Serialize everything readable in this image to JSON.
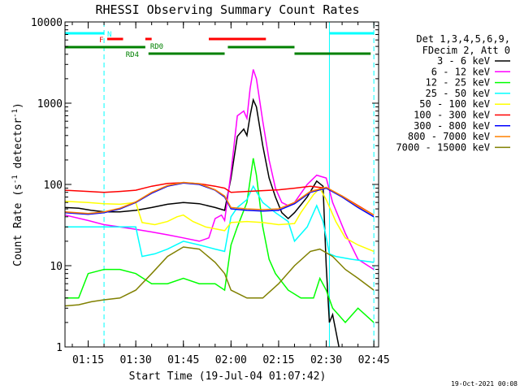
{
  "chart_data": {
    "type": "line",
    "title": "RHESSI Observing Summary Count Rates",
    "xlabel": "Start Time (19-Jul-04 01:07:42)",
    "ylabel": "Count Rate (s⁻¹ detector⁻¹)",
    "ylabel_parts": {
      "main": "Count Rate (s",
      "exp1": "-1",
      "mid": " detector",
      "exp2": "-1",
      "end": ")"
    },
    "y_scale": "log",
    "ylim": [
      1,
      10000
    ],
    "xlim": [
      "01:07:42",
      "02:46:30"
    ],
    "x_ticks": [
      "01:15",
      "01:30",
      "01:45",
      "02:00",
      "02:15",
      "02:30",
      "02:45"
    ],
    "y_ticks": [
      "1",
      "10",
      "100",
      "1000",
      "10000"
    ],
    "legend_header": [
      "Det 1,3,4,5,6,9,",
      "FDecim 2, Att 0"
    ],
    "legend_position": "right",
    "footer_date": "19-Oct-2021 00:08",
    "series": [
      {
        "name": "3 - 6 keV",
        "color": "#000000",
        "points": [
          [
            "01:07:42",
            52
          ],
          [
            "01:12",
            51
          ],
          [
            "01:16",
            48
          ],
          [
            "01:20",
            46
          ],
          [
            "01:25",
            46
          ],
          [
            "01:30",
            48
          ],
          [
            "01:35",
            52
          ],
          [
            "01:40",
            57
          ],
          [
            "01:45",
            60
          ],
          [
            "01:50",
            58
          ],
          [
            "01:55",
            52
          ],
          [
            "01:58",
            48
          ],
          [
            "02:00",
            120
          ],
          [
            "02:02",
            390
          ],
          [
            "02:04",
            480
          ],
          [
            "02:05",
            400
          ],
          [
            "02:06",
            700
          ],
          [
            "02:07",
            1100
          ],
          [
            "02:08",
            900
          ],
          [
            "02:10",
            300
          ],
          [
            "02:12",
            120
          ],
          [
            "02:14",
            70
          ],
          [
            "02:16",
            45
          ],
          [
            "02:18",
            38
          ],
          [
            "02:20",
            45
          ],
          [
            "02:24",
            70
          ],
          [
            "02:27",
            110
          ],
          [
            "02:29",
            95
          ],
          [
            "02:30",
            10
          ],
          [
            "02:31",
            2
          ],
          [
            "02:32",
            2.5
          ],
          [
            "02:34",
            1
          ]
        ]
      },
      {
        "name": "6 - 12 keV",
        "color": "#ff00ff",
        "points": [
          [
            "01:07:42",
            42
          ],
          [
            "01:15",
            36
          ],
          [
            "01:20",
            32
          ],
          [
            "01:25",
            30
          ],
          [
            "01:30",
            28
          ],
          [
            "01:35",
            26
          ],
          [
            "01:40",
            24
          ],
          [
            "01:45",
            22
          ],
          [
            "01:50",
            20
          ],
          [
            "01:53",
            22
          ],
          [
            "01:55",
            38
          ],
          [
            "01:57",
            42
          ],
          [
            "01:58",
            36
          ],
          [
            "02:00",
            140
          ],
          [
            "02:02",
            700
          ],
          [
            "02:04",
            800
          ],
          [
            "02:05",
            650
          ],
          [
            "02:06",
            1500
          ],
          [
            "02:07",
            2600
          ],
          [
            "02:08",
            2000
          ],
          [
            "02:10",
            600
          ],
          [
            "02:12",
            200
          ],
          [
            "02:14",
            90
          ],
          [
            "02:16",
            60
          ],
          [
            "02:18",
            55
          ],
          [
            "02:20",
            60
          ],
          [
            "02:24",
            100
          ],
          [
            "02:27",
            130
          ],
          [
            "02:30",
            120
          ],
          [
            "02:32",
            60
          ],
          [
            "02:36",
            25
          ],
          [
            "02:40",
            12
          ],
          [
            "02:45",
            9
          ]
        ]
      },
      {
        "name": "12 - 25 keV",
        "color": "#00ff00",
        "points": [
          [
            "01:07:42",
            4
          ],
          [
            "01:12",
            4
          ],
          [
            "01:15",
            8
          ],
          [
            "01:20",
            9
          ],
          [
            "01:25",
            9
          ],
          [
            "01:30",
            8
          ],
          [
            "01:35",
            6
          ],
          [
            "01:40",
            6
          ],
          [
            "01:45",
            7
          ],
          [
            "01:50",
            6
          ],
          [
            "01:55",
            6
          ],
          [
            "01:58",
            5
          ],
          [
            "02:00",
            18
          ],
          [
            "02:02",
            30
          ],
          [
            "02:05",
            60
          ],
          [
            "02:07",
            210
          ],
          [
            "02:08",
            130
          ],
          [
            "02:10",
            30
          ],
          [
            "02:12",
            12
          ],
          [
            "02:14",
            8
          ],
          [
            "02:18",
            5
          ],
          [
            "02:22",
            4
          ],
          [
            "02:26",
            4
          ],
          [
            "02:28",
            7
          ],
          [
            "02:30",
            5
          ],
          [
            "02:32",
            3
          ],
          [
            "02:36",
            2
          ],
          [
            "02:40",
            3
          ],
          [
            "02:45",
            2
          ]
        ]
      },
      {
        "name": "25 - 50 keV",
        "color": "#00ffff",
        "points": [
          [
            "01:07:42",
            30
          ],
          [
            "01:15",
            30
          ],
          [
            "01:20",
            30
          ],
          [
            "01:25",
            30
          ],
          [
            "01:30",
            30
          ],
          [
            "01:32",
            13
          ],
          [
            "01:36",
            14
          ],
          [
            "01:40",
            16
          ],
          [
            "01:45",
            20
          ],
          [
            "01:50",
            18
          ],
          [
            "01:55",
            16
          ],
          [
            "01:58",
            15
          ],
          [
            "02:00",
            40
          ],
          [
            "02:02",
            52
          ],
          [
            "02:05",
            65
          ],
          [
            "02:07",
            95
          ],
          [
            "02:10",
            60
          ],
          [
            "02:14",
            45
          ],
          [
            "02:18",
            35
          ],
          [
            "02:20",
            20
          ],
          [
            "02:24",
            30
          ],
          [
            "02:27",
            55
          ],
          [
            "02:29",
            35
          ],
          [
            "02:31",
            14
          ],
          [
            "02:33",
            13
          ],
          [
            "02:38",
            12
          ],
          [
            "02:45",
            11
          ]
        ]
      },
      {
        "name": "50 - 100 keV",
        "color": "#ffff00",
        "points": [
          [
            "01:07:42",
            62
          ],
          [
            "01:15",
            60
          ],
          [
            "01:20",
            58
          ],
          [
            "01:25",
            57
          ],
          [
            "01:30",
            60
          ],
          [
            "01:32",
            34
          ],
          [
            "01:36",
            32
          ],
          [
            "01:40",
            35
          ],
          [
            "01:43",
            40
          ],
          [
            "01:45",
            42
          ],
          [
            "01:48",
            35
          ],
          [
            "01:52",
            30
          ],
          [
            "01:58",
            27
          ],
          [
            "02:00",
            34
          ],
          [
            "02:05",
            35
          ],
          [
            "02:10",
            34
          ],
          [
            "02:15",
            32
          ],
          [
            "02:20",
            33
          ],
          [
            "02:22",
            45
          ],
          [
            "02:26",
            75
          ],
          [
            "02:28",
            90
          ],
          [
            "02:30",
            65
          ],
          [
            "02:33",
            35
          ],
          [
            "02:36",
            22
          ],
          [
            "02:40",
            18
          ],
          [
            "02:45",
            15
          ]
        ]
      },
      {
        "name": "100 - 300 keV",
        "color": "#ff0000",
        "points": [
          [
            "01:07:42",
            85
          ],
          [
            "01:15",
            82
          ],
          [
            "01:20",
            80
          ],
          [
            "01:25",
            82
          ],
          [
            "01:30",
            85
          ],
          [
            "01:35",
            95
          ],
          [
            "01:40",
            103
          ],
          [
            "01:45",
            105
          ],
          [
            "01:50",
            102
          ],
          [
            "01:55",
            95
          ],
          [
            "01:58",
            90
          ],
          [
            "02:00",
            80
          ],
          [
            "02:05",
            82
          ],
          [
            "02:10",
            84
          ],
          [
            "02:15",
            86
          ],
          [
            "02:20",
            90
          ],
          [
            "02:25",
            95
          ],
          [
            "02:30",
            90
          ],
          [
            "02:35",
            72
          ],
          [
            "02:40",
            55
          ],
          [
            "02:45",
            42
          ]
        ]
      },
      {
        "name": "300 - 800 keV",
        "color": "#0000ff",
        "points": [
          [
            "01:07:42",
            45
          ],
          [
            "01:15",
            43
          ],
          [
            "01:20",
            45
          ],
          [
            "01:25",
            50
          ],
          [
            "01:30",
            60
          ],
          [
            "01:35",
            78
          ],
          [
            "01:40",
            95
          ],
          [
            "01:45",
            104
          ],
          [
            "01:50",
            100
          ],
          [
            "01:55",
            85
          ],
          [
            "01:58",
            70
          ],
          [
            "02:00",
            50
          ],
          [
            "02:05",
            48
          ],
          [
            "02:10",
            47
          ],
          [
            "02:15",
            48
          ],
          [
            "02:20",
            58
          ],
          [
            "02:25",
            80
          ],
          [
            "02:30",
            90
          ],
          [
            "02:35",
            70
          ],
          [
            "02:40",
            52
          ],
          [
            "02:45",
            40
          ]
        ]
      },
      {
        "name": "800 - 7000 keV",
        "color": "#ff8000",
        "points": [
          [
            "01:07:42",
            46
          ],
          [
            "01:15",
            44
          ],
          [
            "01:20",
            46
          ],
          [
            "01:25",
            51
          ],
          [
            "01:30",
            61
          ],
          [
            "01:35",
            80
          ],
          [
            "01:40",
            97
          ],
          [
            "01:45",
            106
          ],
          [
            "01:50",
            102
          ],
          [
            "01:55",
            86
          ],
          [
            "01:58",
            72
          ],
          [
            "02:00",
            52
          ],
          [
            "02:05",
            50
          ],
          [
            "02:10",
            49
          ],
          [
            "02:15",
            50
          ],
          [
            "02:20",
            60
          ],
          [
            "02:25",
            82
          ],
          [
            "02:30",
            92
          ],
          [
            "02:35",
            72
          ],
          [
            "02:40",
            54
          ],
          [
            "02:45",
            42
          ]
        ]
      },
      {
        "name": "7000 - 15000 keV",
        "color": "#808000",
        "points": [
          [
            "01:07:42",
            3.2
          ],
          [
            "01:12",
            3.3
          ],
          [
            "01:16",
            3.6
          ],
          [
            "01:20",
            3.8
          ],
          [
            "01:25",
            4.0
          ],
          [
            "01:30",
            5
          ],
          [
            "01:35",
            8
          ],
          [
            "01:40",
            13
          ],
          [
            "01:45",
            17
          ],
          [
            "01:50",
            16
          ],
          [
            "01:55",
            11
          ],
          [
            "01:58",
            8
          ],
          [
            "02:00",
            5
          ],
          [
            "02:05",
            4
          ],
          [
            "02:10",
            4
          ],
          [
            "02:15",
            6
          ],
          [
            "02:20",
            10
          ],
          [
            "02:25",
            15
          ],
          [
            "02:28",
            16
          ],
          [
            "02:32",
            13
          ],
          [
            "02:36",
            9
          ],
          [
            "02:40",
            7
          ],
          [
            "02:45",
            5
          ]
        ]
      }
    ],
    "status_bars": [
      {
        "label": "N",
        "color": "#00ffff",
        "row": 1,
        "segments": [
          [
            "01:07:42",
            "01:20"
          ],
          [
            "02:31",
            "02:45"
          ]
        ]
      },
      {
        "label": "F",
        "color": "#ff0000",
        "row": 2,
        "segments": [
          [
            "01:21",
            "01:26"
          ],
          [
            "01:33",
            "01:35"
          ],
          [
            "01:53",
            "02:11"
          ]
        ]
      },
      {
        "label": "RD0",
        "color": "#008000",
        "row": 3,
        "segments": [
          [
            "01:07:42",
            "01:33"
          ],
          [
            "01:59",
            "02:20"
          ]
        ]
      },
      {
        "label": "RD4",
        "color": "#008000",
        "row": 4,
        "segments": [
          [
            "01:34",
            "01:58"
          ],
          [
            "02:20",
            "02:44"
          ]
        ]
      }
    ],
    "vertical_lines": [
      {
        "time": "01:07:42",
        "color": "#00ffff",
        "style": "solid"
      },
      {
        "time": "01:20",
        "color": "#00ffff",
        "style": "dashed"
      },
      {
        "time": "02:31",
        "color": "#00ffff",
        "style": "solid"
      },
      {
        "time": "02:45",
        "color": "#00ffff",
        "style": "dashed"
      }
    ]
  }
}
